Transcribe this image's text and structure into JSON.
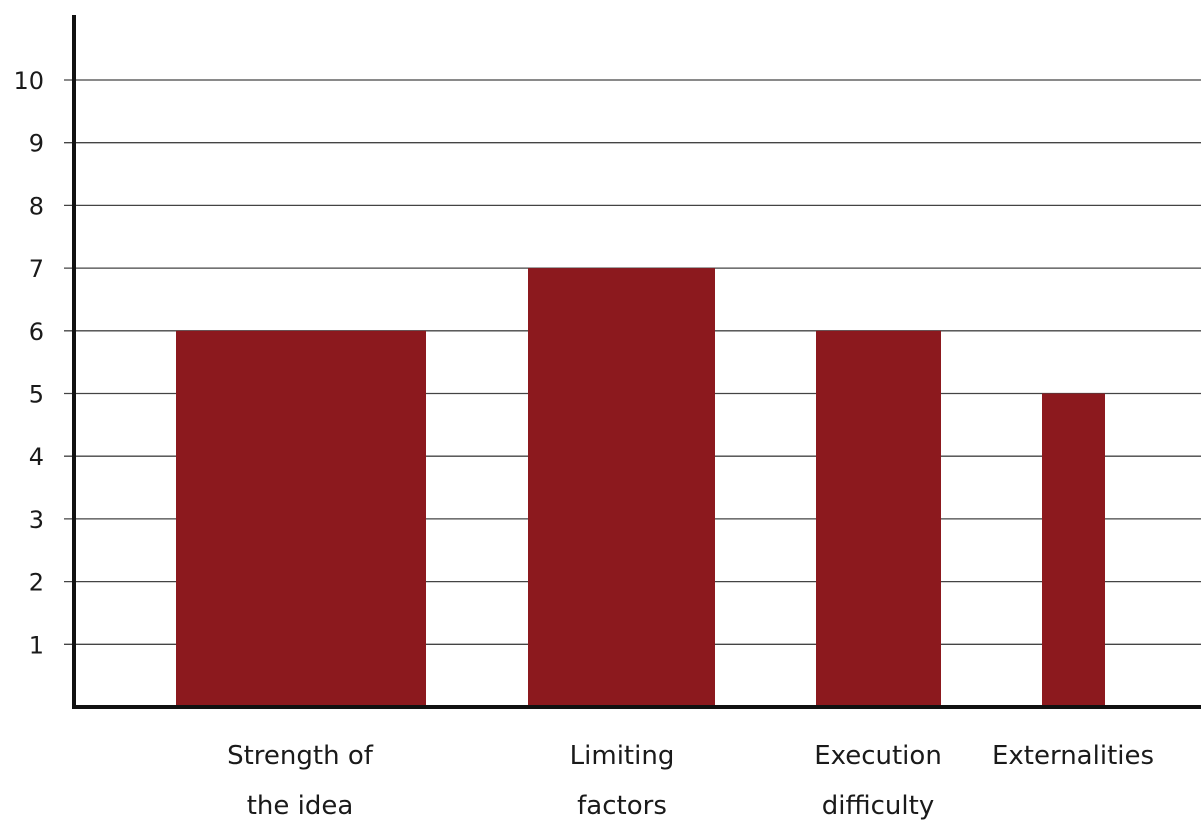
{
  "chart_data": {
    "type": "bar",
    "title": "",
    "xlabel": "",
    "ylabel": "",
    "categories": [
      [
        "Strength of",
        "the idea"
      ],
      [
        "Limiting",
        "factors"
      ],
      [
        "Execution",
        "difficulty"
      ],
      [
        "Externalities"
      ]
    ],
    "values": [
      6,
      7,
      6,
      5
    ],
    "ylim": [
      0,
      10
    ],
    "yticks": [
      "1",
      "2",
      "3",
      "4",
      "5",
      "6",
      "7",
      "8",
      "9",
      "10"
    ],
    "grid": true,
    "bar_color": "#8c191e",
    "axis_color": "#111111",
    "grid_color": "#444444"
  }
}
